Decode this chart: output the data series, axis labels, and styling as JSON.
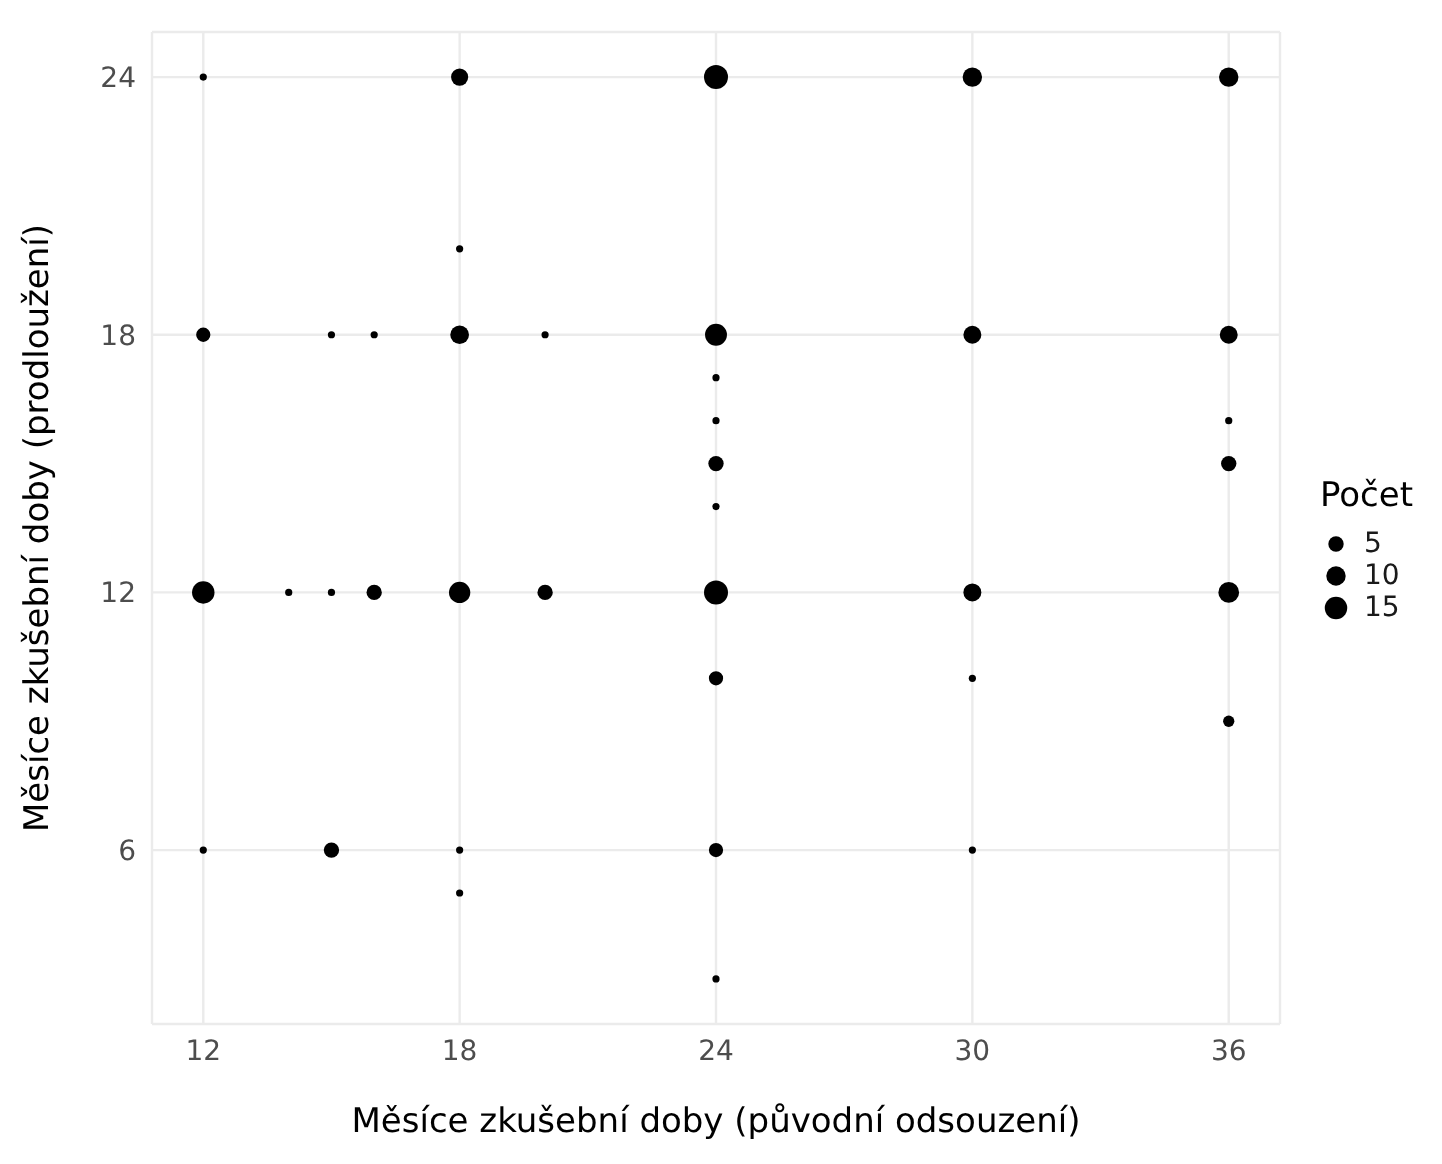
{
  "chart_data": {
    "type": "bubble",
    "xlabel": "Měsíce zkušební doby (původní odsouzení)",
    "ylabel": "Měsíce zkušební doby (prodloužení)",
    "legend_title": "Počet",
    "x": [
      12,
      18,
      24,
      30,
      36,
      18,
      12,
      15,
      16,
      18,
      20,
      24,
      30,
      36,
      24,
      24,
      24,
      36,
      36,
      24,
      12,
      14,
      15,
      16,
      18,
      20,
      24,
      30,
      36,
      24,
      30,
      36,
      12,
      15,
      18,
      24,
      30,
      18,
      24
    ],
    "values": [
      24,
      24,
      24,
      24,
      24,
      20,
      18,
      18,
      18,
      18,
      18,
      18,
      18,
      18,
      17,
      16,
      15,
      16,
      15,
      14,
      12,
      12,
      12,
      12,
      12,
      12,
      12,
      12,
      12,
      10,
      10,
      9,
      6,
      6,
      6,
      6,
      6,
      5,
      3
    ],
    "sizes": [
      1,
      7,
      18,
      10,
      10,
      1,
      4,
      1,
      1,
      9,
      1,
      14,
      8,
      8,
      1,
      1,
      5,
      1,
      5,
      1,
      15,
      1,
      1,
      5,
      13,
      5,
      18,
      8,
      12,
      4,
      1,
      2,
      1,
      5,
      1,
      4,
      1,
      1,
      1
    ],
    "color": "#000000",
    "size_legend": [
      5,
      10,
      15
    ],
    "xlim": [
      10.8,
      37.2
    ],
    "xticks": [
      12,
      18,
      24,
      30,
      36
    ],
    "ylim": [
      1.95,
      25.05
    ],
    "yticks": [
      6,
      12,
      18,
      24
    ],
    "grid": true,
    "marker": "circle"
  }
}
